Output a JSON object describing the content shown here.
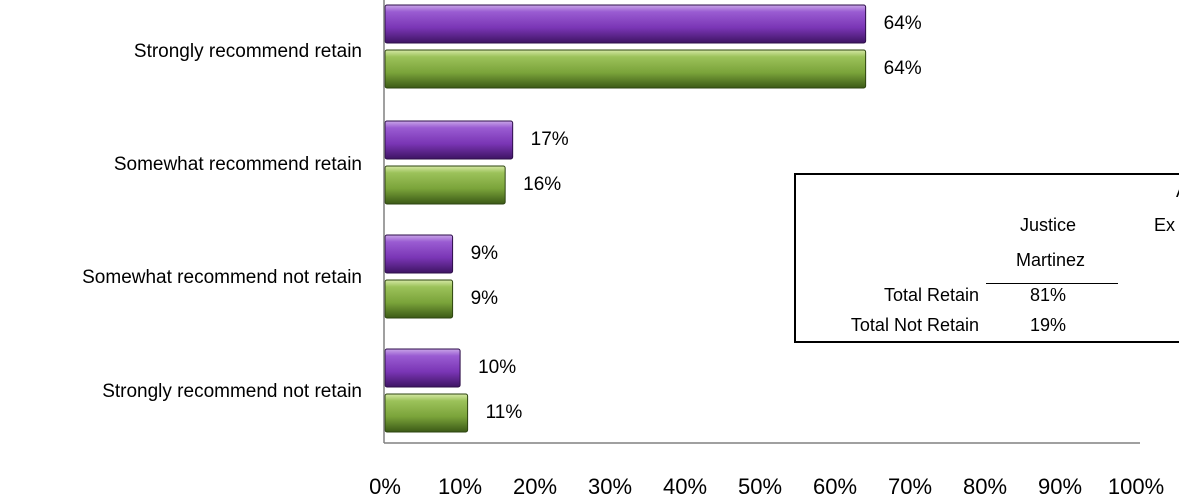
{
  "chart_data": {
    "type": "bar",
    "orientation": "horizontal",
    "categories": [
      "Strongly recommend retain",
      "Somewhat recommend retain",
      "Somewhat recommend not retain",
      "Strongly recommend not retain"
    ],
    "series": [
      {
        "color": "#7a35b5",
        "values": [
          64,
          17,
          9,
          10
        ],
        "labels": [
          "64%",
          "17%",
          "9%",
          "10%"
        ]
      },
      {
        "color": "#7aa33a",
        "values": [
          64,
          16,
          9,
          11
        ],
        "labels": [
          "64%",
          "16%",
          "9%",
          "11%"
        ]
      }
    ],
    "xlim": [
      0,
      100
    ],
    "xticks": [
      "0%",
      "10%",
      "20%",
      "30%",
      "40%",
      "50%",
      "60%",
      "70%",
      "80%",
      "90%",
      "100%"
    ],
    "grid": false
  },
  "table": {
    "col1_header_line1": "Justice",
    "col1_header_line2": "Martinez",
    "col2_header_line1": "A",
    "col2_header_line2": "Ex",
    "rows": [
      {
        "label": "Total Retain",
        "col1": "81%"
      },
      {
        "label": "Total Not Retain",
        "col1": "19%"
      }
    ]
  }
}
